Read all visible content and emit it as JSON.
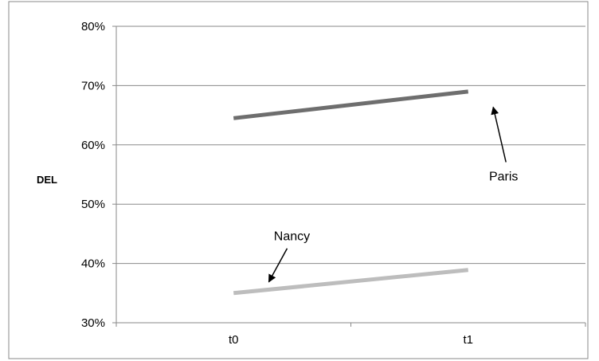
{
  "chart_data": {
    "type": "line",
    "title": "",
    "xlabel": "",
    "ylabel": "DEL",
    "x": [
      "t0",
      "t1"
    ],
    "ylim": [
      0.3,
      0.8
    ],
    "yticks": [
      0.3,
      0.4,
      0.5,
      0.6,
      0.7,
      0.8
    ],
    "ytick_labels": [
      "30%",
      "40%",
      "50%",
      "60%",
      "70%",
      "80%"
    ],
    "grid": "horizontal",
    "legend": "none",
    "series": [
      {
        "name": "Paris",
        "values": [
          0.645,
          0.69
        ],
        "color": "#6e6e6e"
      },
      {
        "name": "Nancy",
        "values": [
          0.35,
          0.389
        ],
        "color": "#bdbdbd"
      }
    ],
    "annotations": [
      {
        "text": "Paris",
        "points_to": "Paris",
        "at_x": 0.8
      },
      {
        "text": "Nancy",
        "points_to": "Nancy",
        "at_x": 0.32
      }
    ]
  }
}
